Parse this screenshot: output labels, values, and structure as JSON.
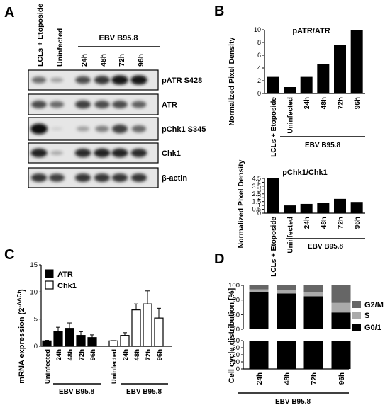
{
  "panels": {
    "a": "A",
    "b": "B",
    "c": "C",
    "d": "D"
  },
  "blot": {
    "lanes": [
      "LCLs + Etoposide",
      "Uninfected",
      "24h",
      "48h",
      "72h",
      "96h"
    ],
    "group_label": "EBV B95.8",
    "rows": [
      {
        "label": "pATR S428",
        "intensity": [
          0.55,
          0.3,
          0.7,
          0.8,
          0.95,
          0.95
        ]
      },
      {
        "label": "ATR",
        "intensity": [
          0.7,
          0.55,
          0.75,
          0.7,
          0.7,
          0.6
        ]
      },
      {
        "label": "pChk1 S345",
        "intensity": [
          1.0,
          0.08,
          0.3,
          0.45,
          0.75,
          0.55
        ]
      },
      {
        "label": "Chk1",
        "intensity": [
          0.9,
          0.25,
          0.85,
          0.9,
          0.9,
          0.85
        ]
      },
      {
        "label": "β-actin",
        "intensity": [
          0.8,
          0.75,
          0.8,
          0.8,
          0.8,
          0.8
        ]
      }
    ]
  },
  "chart_data": [
    {
      "id": "B-top",
      "type": "bar",
      "title": "pATR/ATR",
      "ylabel": "Normalized Pixel Density",
      "categories": [
        "LCLs + Etoposide",
        "Uninfected",
        "24h",
        "48h",
        "72h",
        "96h"
      ],
      "values": [
        2.6,
        1.0,
        2.6,
        4.6,
        7.6,
        10.0
      ],
      "ylim": [
        0,
        10
      ],
      "yticks": [
        0,
        2,
        4,
        6,
        8,
        10
      ],
      "group_label": "EBV B95.8"
    },
    {
      "id": "B-bottom",
      "type": "bar",
      "title": "pChk1/Chk1",
      "ylabel": "Normalized Pixel Density",
      "categories": [
        "LCLs + Etoposide",
        "Uninfected",
        "24h",
        "48h",
        "72h",
        "96h"
      ],
      "values": [
        4.5,
        1.0,
        1.2,
        1.35,
        1.85,
        1.45
      ],
      "ylim": [
        0,
        4.5
      ],
      "yticks": [
        0,
        0.5,
        1,
        1.5,
        2,
        2.5,
        3,
        3.5,
        4,
        4.5
      ],
      "yticklabels": [
        "0",
        "0.5",
        "1",
        "1.5",
        "2",
        "2.5",
        "3",
        "3.5",
        "4",
        "4.5"
      ],
      "group_label": "EBV B95.8"
    },
    {
      "id": "C",
      "type": "bar",
      "ylabel": "mRNA expression (2",
      "ylabel_sup": "-ΔΔCt",
      "ylabel_end": ")",
      "ylim": [
        0,
        15
      ],
      "yticks": [
        0,
        5,
        10,
        15
      ],
      "group_label": "EBV B95.8",
      "legend_position": "top-left",
      "series": [
        {
          "name": "ATR",
          "color": "#000000",
          "categories": [
            "Uninfected",
            "24h",
            "48h",
            "72h",
            "96h"
          ],
          "values": [
            1.0,
            2.7,
            3.3,
            2.0,
            1.6
          ],
          "errors": [
            0.1,
            0.8,
            1.0,
            0.7,
            0.5
          ]
        },
        {
          "name": "Chk1",
          "color": "#ffffff",
          "categories": [
            "Uninfected",
            "24h",
            "48h",
            "72h",
            "96h"
          ],
          "values": [
            1.0,
            2.0,
            6.7,
            7.8,
            5.2
          ],
          "errors": [
            0.05,
            0.5,
            1.1,
            2.4,
            1.8
          ]
        }
      ]
    },
    {
      "id": "D",
      "type": "bar",
      "stacked": true,
      "ylabel": "Cell cycle distribution [%]",
      "categories": [
        "24h",
        "48h",
        "72h",
        "96h"
      ],
      "broken_axis": {
        "lower": [
          0,
          40
        ],
        "upper": [
          70,
          100
        ]
      },
      "yticks_lower": [
        0,
        10,
        20,
        30,
        40
      ],
      "yticks_upper": [
        70,
        80,
        90,
        100
      ],
      "group_label": "EBV B95.8",
      "series": [
        {
          "name": "G0/1",
          "color": "#000000",
          "values": [
            95.5,
            94.5,
            92.5,
            81.5
          ]
        },
        {
          "name": "S",
          "color": "#aaaaaa",
          "values": [
            1.8,
            2.5,
            3.0,
            6.5
          ]
        },
        {
          "name": "G2/M",
          "color": "#666666",
          "values": [
            2.7,
            3.0,
            4.5,
            12.0
          ]
        }
      ],
      "legend_order": [
        "G2/M",
        "S",
        "G0/1"
      ]
    }
  ]
}
